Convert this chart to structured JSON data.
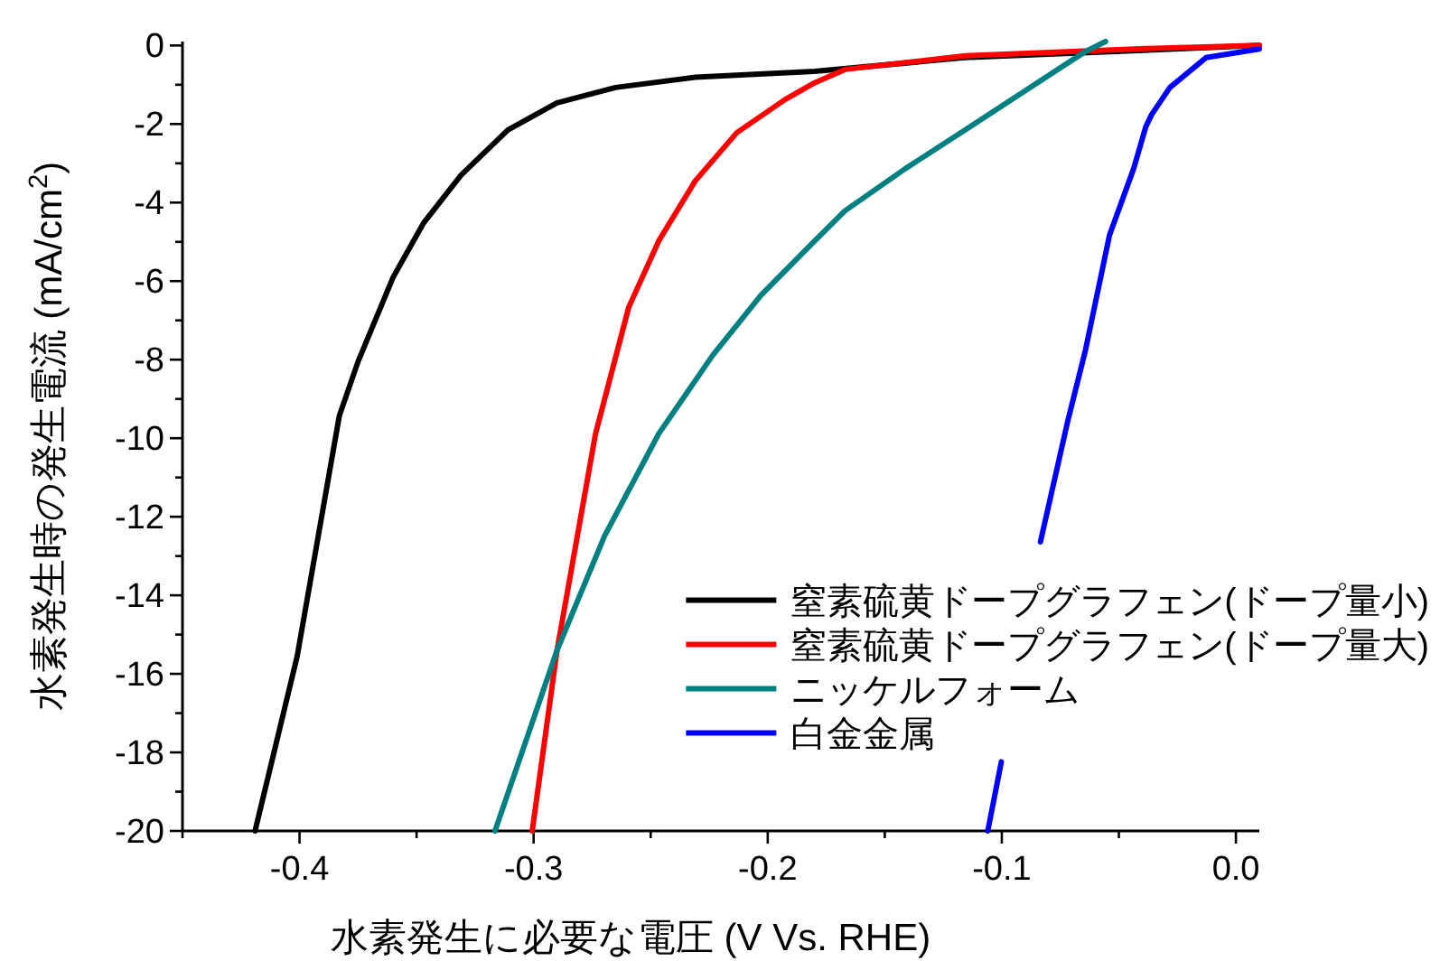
{
  "chart_data": {
    "type": "line",
    "xlabel": "水素発生に必要な電圧 (V Vs. RHE)",
    "ylabel": "水素発生時の発生電流 (mA/cm$^{2}$)",
    "xlim": [
      -0.45,
      0.01
    ],
    "ylim": [
      -20,
      0.1
    ],
    "xticks": [
      {
        "value": -0.45,
        "label": null
      },
      -0.4,
      {
        "value": -0.35,
        "label": null
      },
      -0.3,
      {
        "value": -0.25,
        "label": null
      },
      -0.2,
      {
        "value": -0.15,
        "label": null
      },
      -0.1,
      {
        "value": -0.05,
        "label": null
      },
      {
        "value": 0,
        "label": "0.0"
      }
    ],
    "yticks": [
      0,
      {
        "value": -1,
        "label": null
      },
      -2,
      {
        "value": -3,
        "label": null
      },
      -4,
      {
        "value": -5,
        "label": null
      },
      -6,
      {
        "value": -7,
        "label": null
      },
      -8,
      {
        "value": -9,
        "label": null
      },
      -10,
      {
        "value": -11,
        "label": null
      },
      -12,
      {
        "value": -13,
        "label": null
      },
      -14,
      {
        "value": -15,
        "label": null
      },
      -16,
      {
        "value": -17,
        "label": null
      },
      -18,
      {
        "value": -19,
        "label": null
      },
      -20
    ],
    "legend": "bottom right",
    "grid": false,
    "marker": "none",
    "line_style": "solid",
    "series": [
      {
        "name": "窒素硫黄ドープグラフェン(ドープ量小)",
        "color": "#000000",
        "x": [
          -0.419,
          -0.401,
          -0.383,
          -0.375,
          -0.36,
          -0.347,
          -0.331,
          -0.311,
          -0.29,
          -0.265,
          -0.231,
          -0.18,
          -0.116,
          0.01
        ],
        "values": [
          -20,
          -15.55,
          -9.43,
          -8.05,
          -5.9,
          -4.52,
          -3.3,
          -2.15,
          -1.46,
          -1.07,
          -0.81,
          -0.66,
          -0.31,
          0
        ]
      },
      {
        "name": "窒素硫黄ドープグラフェン(ドープ量大)",
        "color": "#ff0000",
        "x": [
          -0.3006,
          -0.29,
          -0.2736,
          -0.2594,
          -0.2466,
          -0.231,
          -0.2132,
          -0.1927,
          -0.18,
          -0.167,
          -0.1156,
          -0.0385,
          0.01
        ],
        "values": [
          -20,
          -15.4,
          -9.9,
          -6.67,
          -4.98,
          -3.45,
          -2.22,
          -1.38,
          -0.95,
          -0.61,
          -0.26,
          -0.08,
          0
        ]
      },
      {
        "name": "ニッケルフォーム",
        "color": "#008080",
        "x": [
          -0.3165,
          -0.29,
          -0.2697,
          -0.2466,
          -0.2235,
          -0.2029,
          -0.18,
          -0.167,
          -0.1413,
          -0.1156,
          -0.0899,
          -0.0642,
          -0.0557
        ],
        "values": [
          -20,
          -15.4,
          -12.49,
          -9.89,
          -7.89,
          -6.36,
          -4.98,
          -4.21,
          -3.14,
          -2.15,
          -1.15,
          -0.15,
          0.1
        ]
      },
      {
        "name": "白金金属",
        "color": "#0000ff",
        "x": [
          -0.106,
          -0.1002,
          -0.092,
          -0.0835,
          -0.0719,
          -0.0642,
          -0.054,
          -0.0437,
          -0.0385,
          -0.036,
          -0.0282,
          -0.0128,
          0.01
        ],
        "values": [
          -20,
          -18.24,
          null,
          -12.64,
          -9.58,
          -7.74,
          -4.83,
          -3.14,
          -2.07,
          -1.76,
          -1.07,
          -0.31,
          -0.09
        ]
      }
    ]
  }
}
